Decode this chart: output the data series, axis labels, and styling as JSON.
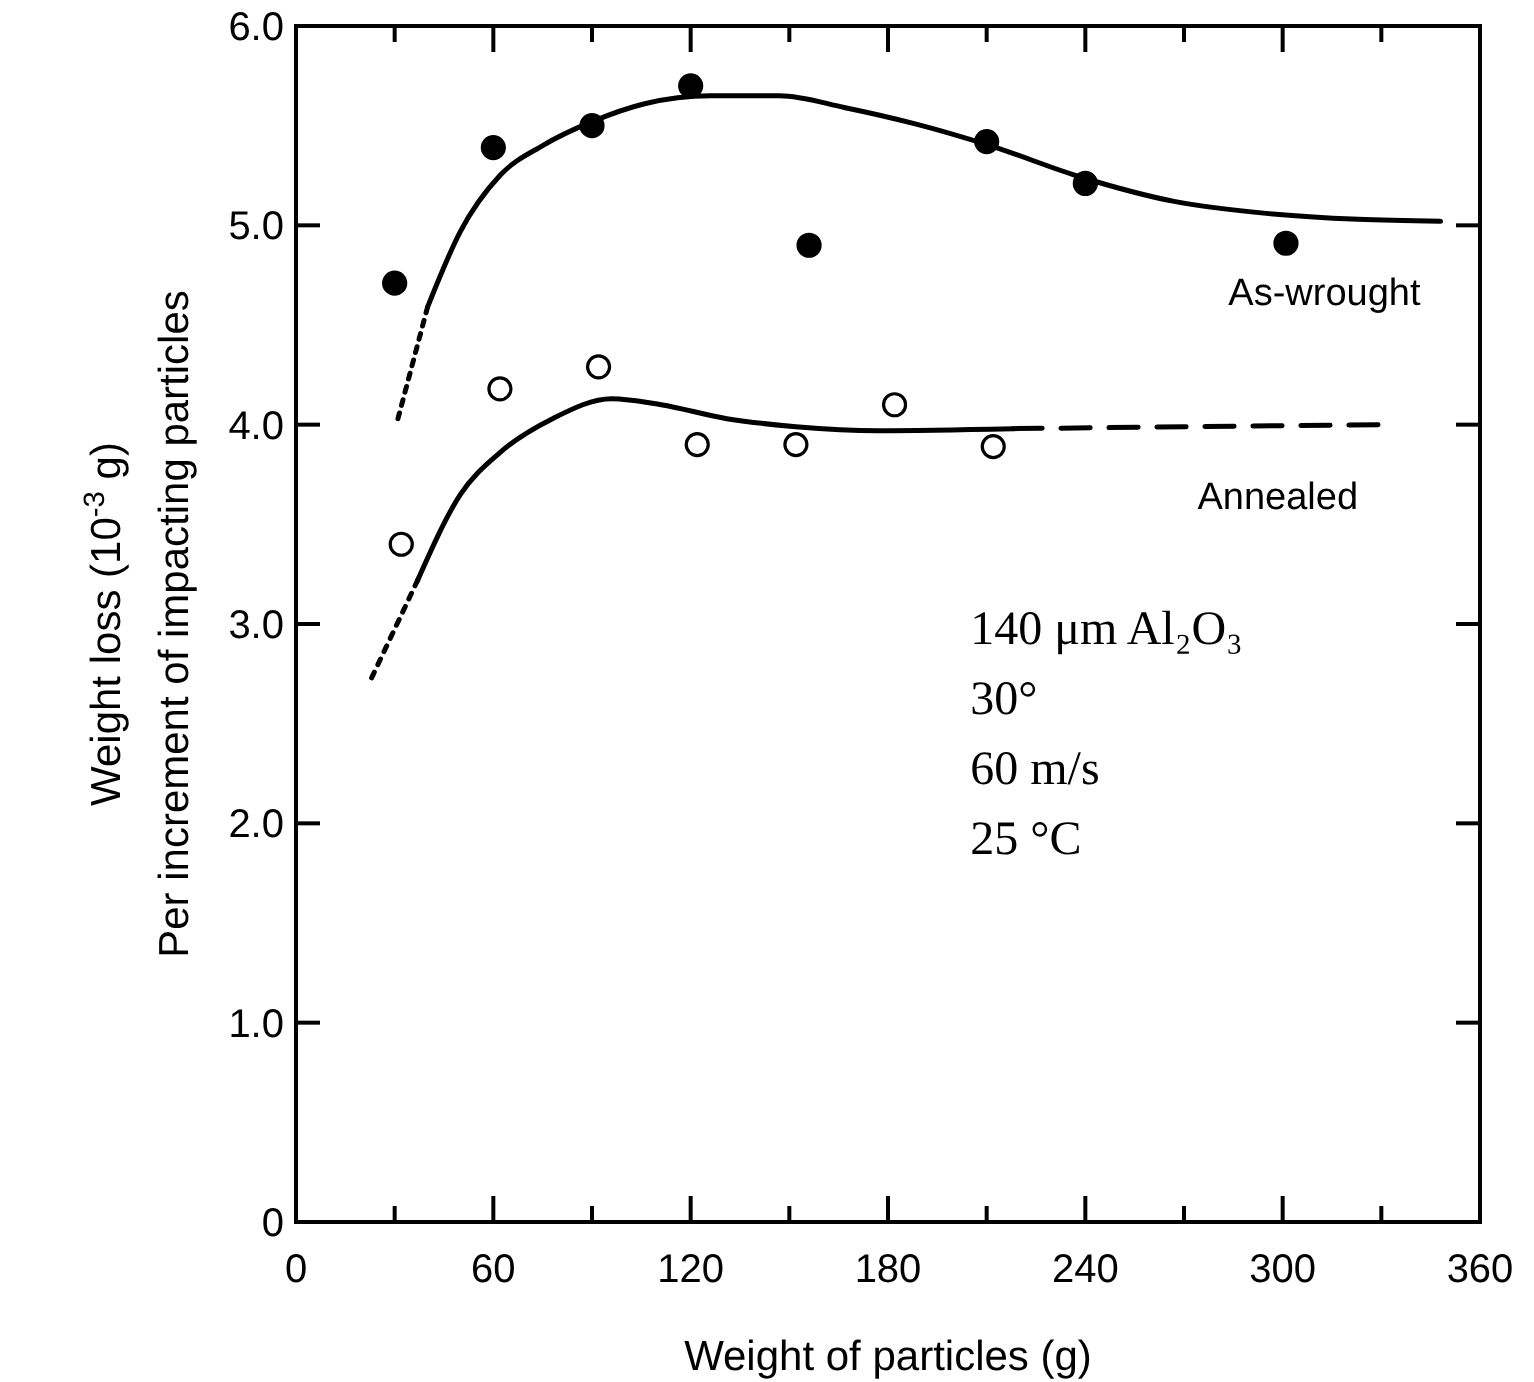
{
  "chart_data": {
    "type": "scatter",
    "xlabel": "Weight of particles (g)",
    "ylabel": "Weight loss (10$^{-3}$ g)\nPer increment of impacting particles",
    "xlim": [
      0,
      360
    ],
    "ylim": [
      0,
      6
    ],
    "xticks": [
      0,
      {
        "value": 30,
        "label": null
      },
      60,
      {
        "value": 90,
        "label": null
      },
      120,
      {
        "value": 150,
        "label": null
      },
      180,
      {
        "value": 210,
        "label": null
      },
      240,
      {
        "value": 270,
        "label": null
      },
      300,
      {
        "value": 330,
        "label": null
      },
      360
    ],
    "yticks": [
      0,
      {
        "value": 1,
        "label": "1.0"
      },
      {
        "value": 2,
        "label": "2.0"
      },
      {
        "value": 3,
        "label": "3.0"
      },
      {
        "value": 4,
        "label": "4.0"
      },
      {
        "value": 5,
        "label": "5.0"
      },
      {
        "value": 6,
        "label": "6.0"
      }
    ],
    "grid": false,
    "series": [
      {
        "marker": "circle",
        "color": "#000000",
        "x": [
          30,
          60,
          90,
          120,
          156,
          210,
          240,
          301
        ],
        "values": [
          4.71,
          5.39,
          5.5,
          5.7,
          4.9,
          5.42,
          5.21,
          4.91
        ]
      },
      {
        "marker": "circle",
        "color": "#ffffff",
        "x": [
          32,
          62,
          92,
          122,
          152,
          182,
          212
        ],
        "values": [
          3.4,
          4.18,
          4.29,
          3.9,
          3.9,
          4.1,
          3.89
        ]
      },
      {
        "type": "line",
        "color": "#000000",
        "line_style": "dotted",
        "x": [
          31,
          40
        ],
        "values": [
          4.03,
          4.59
        ]
      },
      {
        "type": "line",
        "name": "As-wrought",
        "color": "#000000",
        "line_style": "solid",
        "x": [
          40,
          50,
          62,
          75,
          90,
          106,
          126,
          147,
          167,
          188,
          211,
          239,
          267,
          295,
          323,
          348
        ],
        "values": [
          4.59,
          4.97,
          5.25,
          5.4,
          5.52,
          5.61,
          5.65,
          5.65,
          5.59,
          5.51,
          5.4,
          5.24,
          5.12,
          5.06,
          5.03,
          5.02
        ]
      },
      {
        "type": "line",
        "color": "#000000",
        "line_style": "dotted",
        "x": [
          23,
          37
        ],
        "values": [
          2.73,
          3.22
        ]
      },
      {
        "type": "line",
        "color": "#000000",
        "line_style": "solid",
        "x": [
          37,
          50,
          62,
          78,
          96,
          111,
          131,
          152,
          177,
          218
        ],
        "values": [
          3.22,
          3.65,
          3.86,
          4.03,
          4.13,
          4.1,
          4.03,
          3.99,
          3.97,
          3.98
        ]
      },
      {
        "type": "line",
        "name": "Annealed",
        "color": "#000000",
        "line_style": "dashed",
        "x": [
          218,
          329
        ],
        "values": [
          3.98,
          4.0
        ]
      }
    ],
    "annotations": [
      "140 μm Al₂O₃",
      "30°",
      "60 m/s",
      "25 °C"
    ]
  }
}
